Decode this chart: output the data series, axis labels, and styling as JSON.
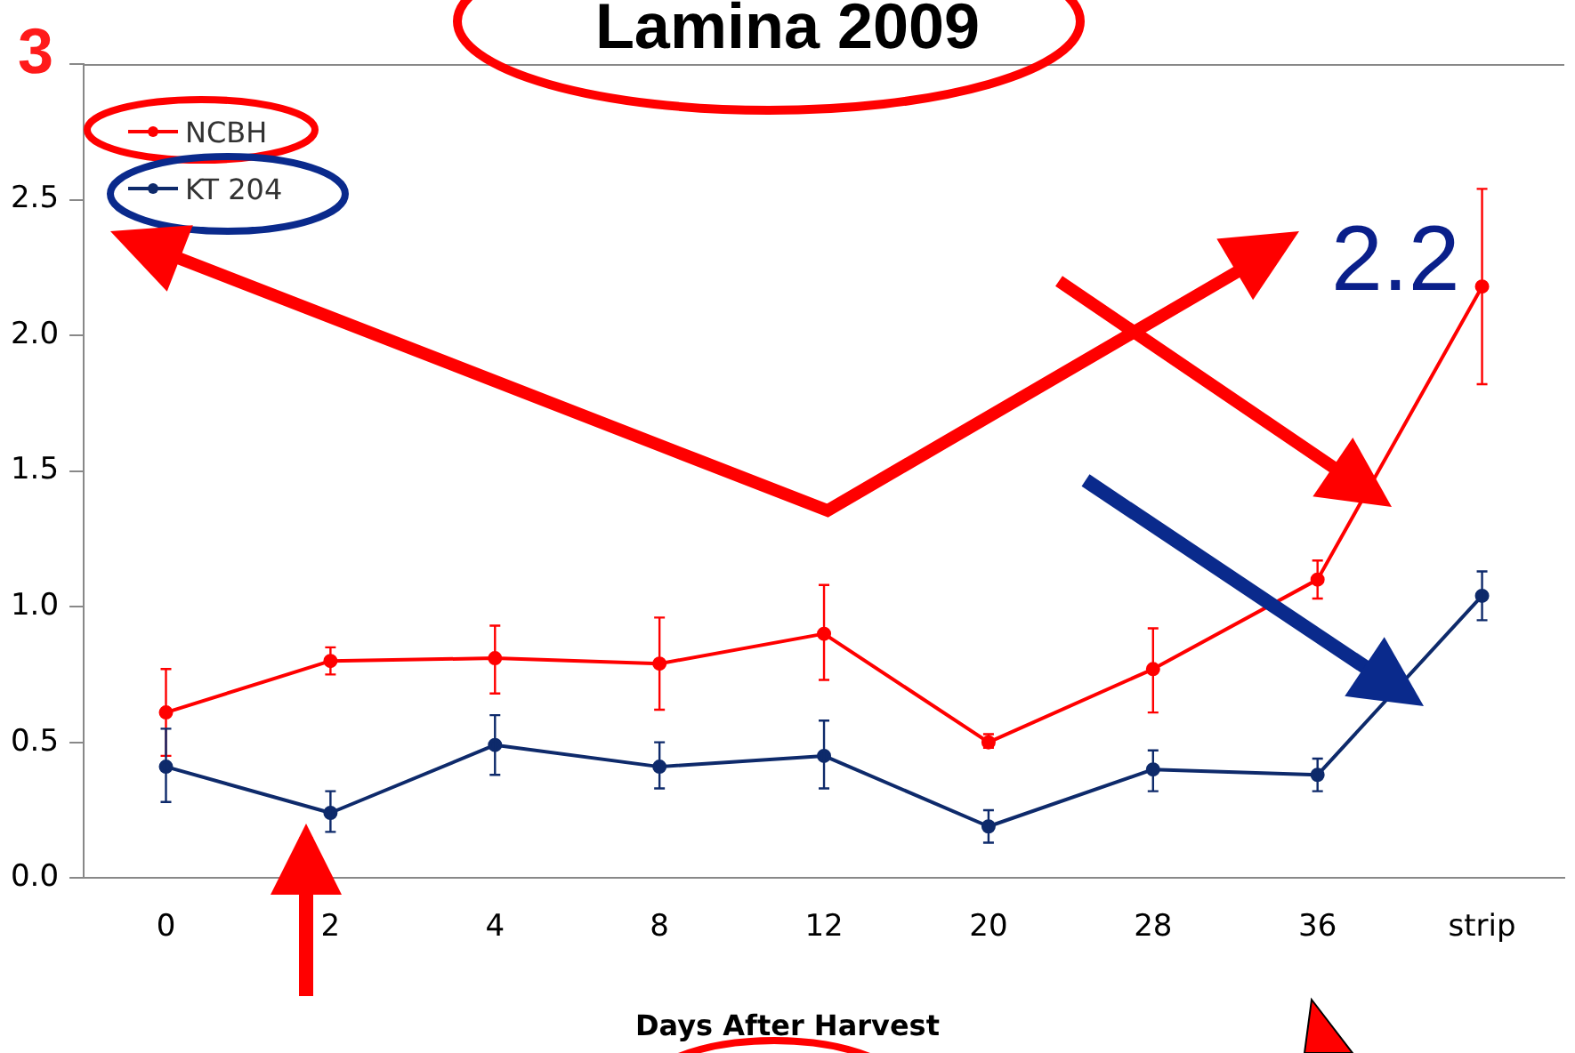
{
  "chart_data": {
    "type": "line",
    "title": "Lamina 2009",
    "xlabel": "Days After Harvest",
    "categories": [
      "0",
      "2",
      "4",
      "8",
      "12",
      "20",
      "28",
      "36",
      "strip"
    ],
    "series": [
      {
        "name": "NCBH",
        "color": "#ff0000",
        "values": [
          0.61,
          0.8,
          0.81,
          0.79,
          0.9,
          0.5,
          0.77,
          1.1,
          2.18
        ],
        "errors": [
          [
            0.45,
            0.77
          ],
          [
            0.75,
            0.85
          ],
          [
            0.68,
            0.93
          ],
          [
            0.62,
            0.96
          ],
          [
            0.73,
            1.08
          ],
          [
            0.48,
            0.53
          ],
          [
            0.61,
            0.92
          ],
          [
            1.03,
            1.17
          ],
          [
            1.82,
            2.54
          ]
        ]
      },
      {
        "name": "KT 204",
        "color": "#0e2a6b",
        "values": [
          0.41,
          0.24,
          0.49,
          0.41,
          0.45,
          0.19,
          0.4,
          0.38,
          1.04
        ],
        "errors": [
          [
            0.28,
            0.55
          ],
          [
            0.17,
            0.32
          ],
          [
            0.38,
            0.6
          ],
          [
            0.33,
            0.5
          ],
          [
            0.33,
            0.58
          ],
          [
            0.13,
            0.25
          ],
          [
            0.32,
            0.47
          ],
          [
            0.32,
            0.44
          ],
          [
            0.95,
            1.13
          ]
        ]
      }
    ],
    "ylim": [
      0,
      3
    ],
    "yticks": [
      {
        "value": 0,
        "label": "0.0"
      },
      {
        "value": 0.5,
        "label": "0.5"
      },
      {
        "value": 1,
        "label": "1.0"
      },
      {
        "value": 1.5,
        "label": "1.5"
      },
      {
        "value": 2,
        "label": "2.0"
      },
      {
        "value": 2.5,
        "label": "2.5"
      },
      {
        "value": 3,
        "label": null
      }
    ],
    "grid": false,
    "legend": "top left",
    "marker": "circle",
    "line_style": "solid",
    "annotations": [
      "3",
      "2.2"
    ]
  }
}
